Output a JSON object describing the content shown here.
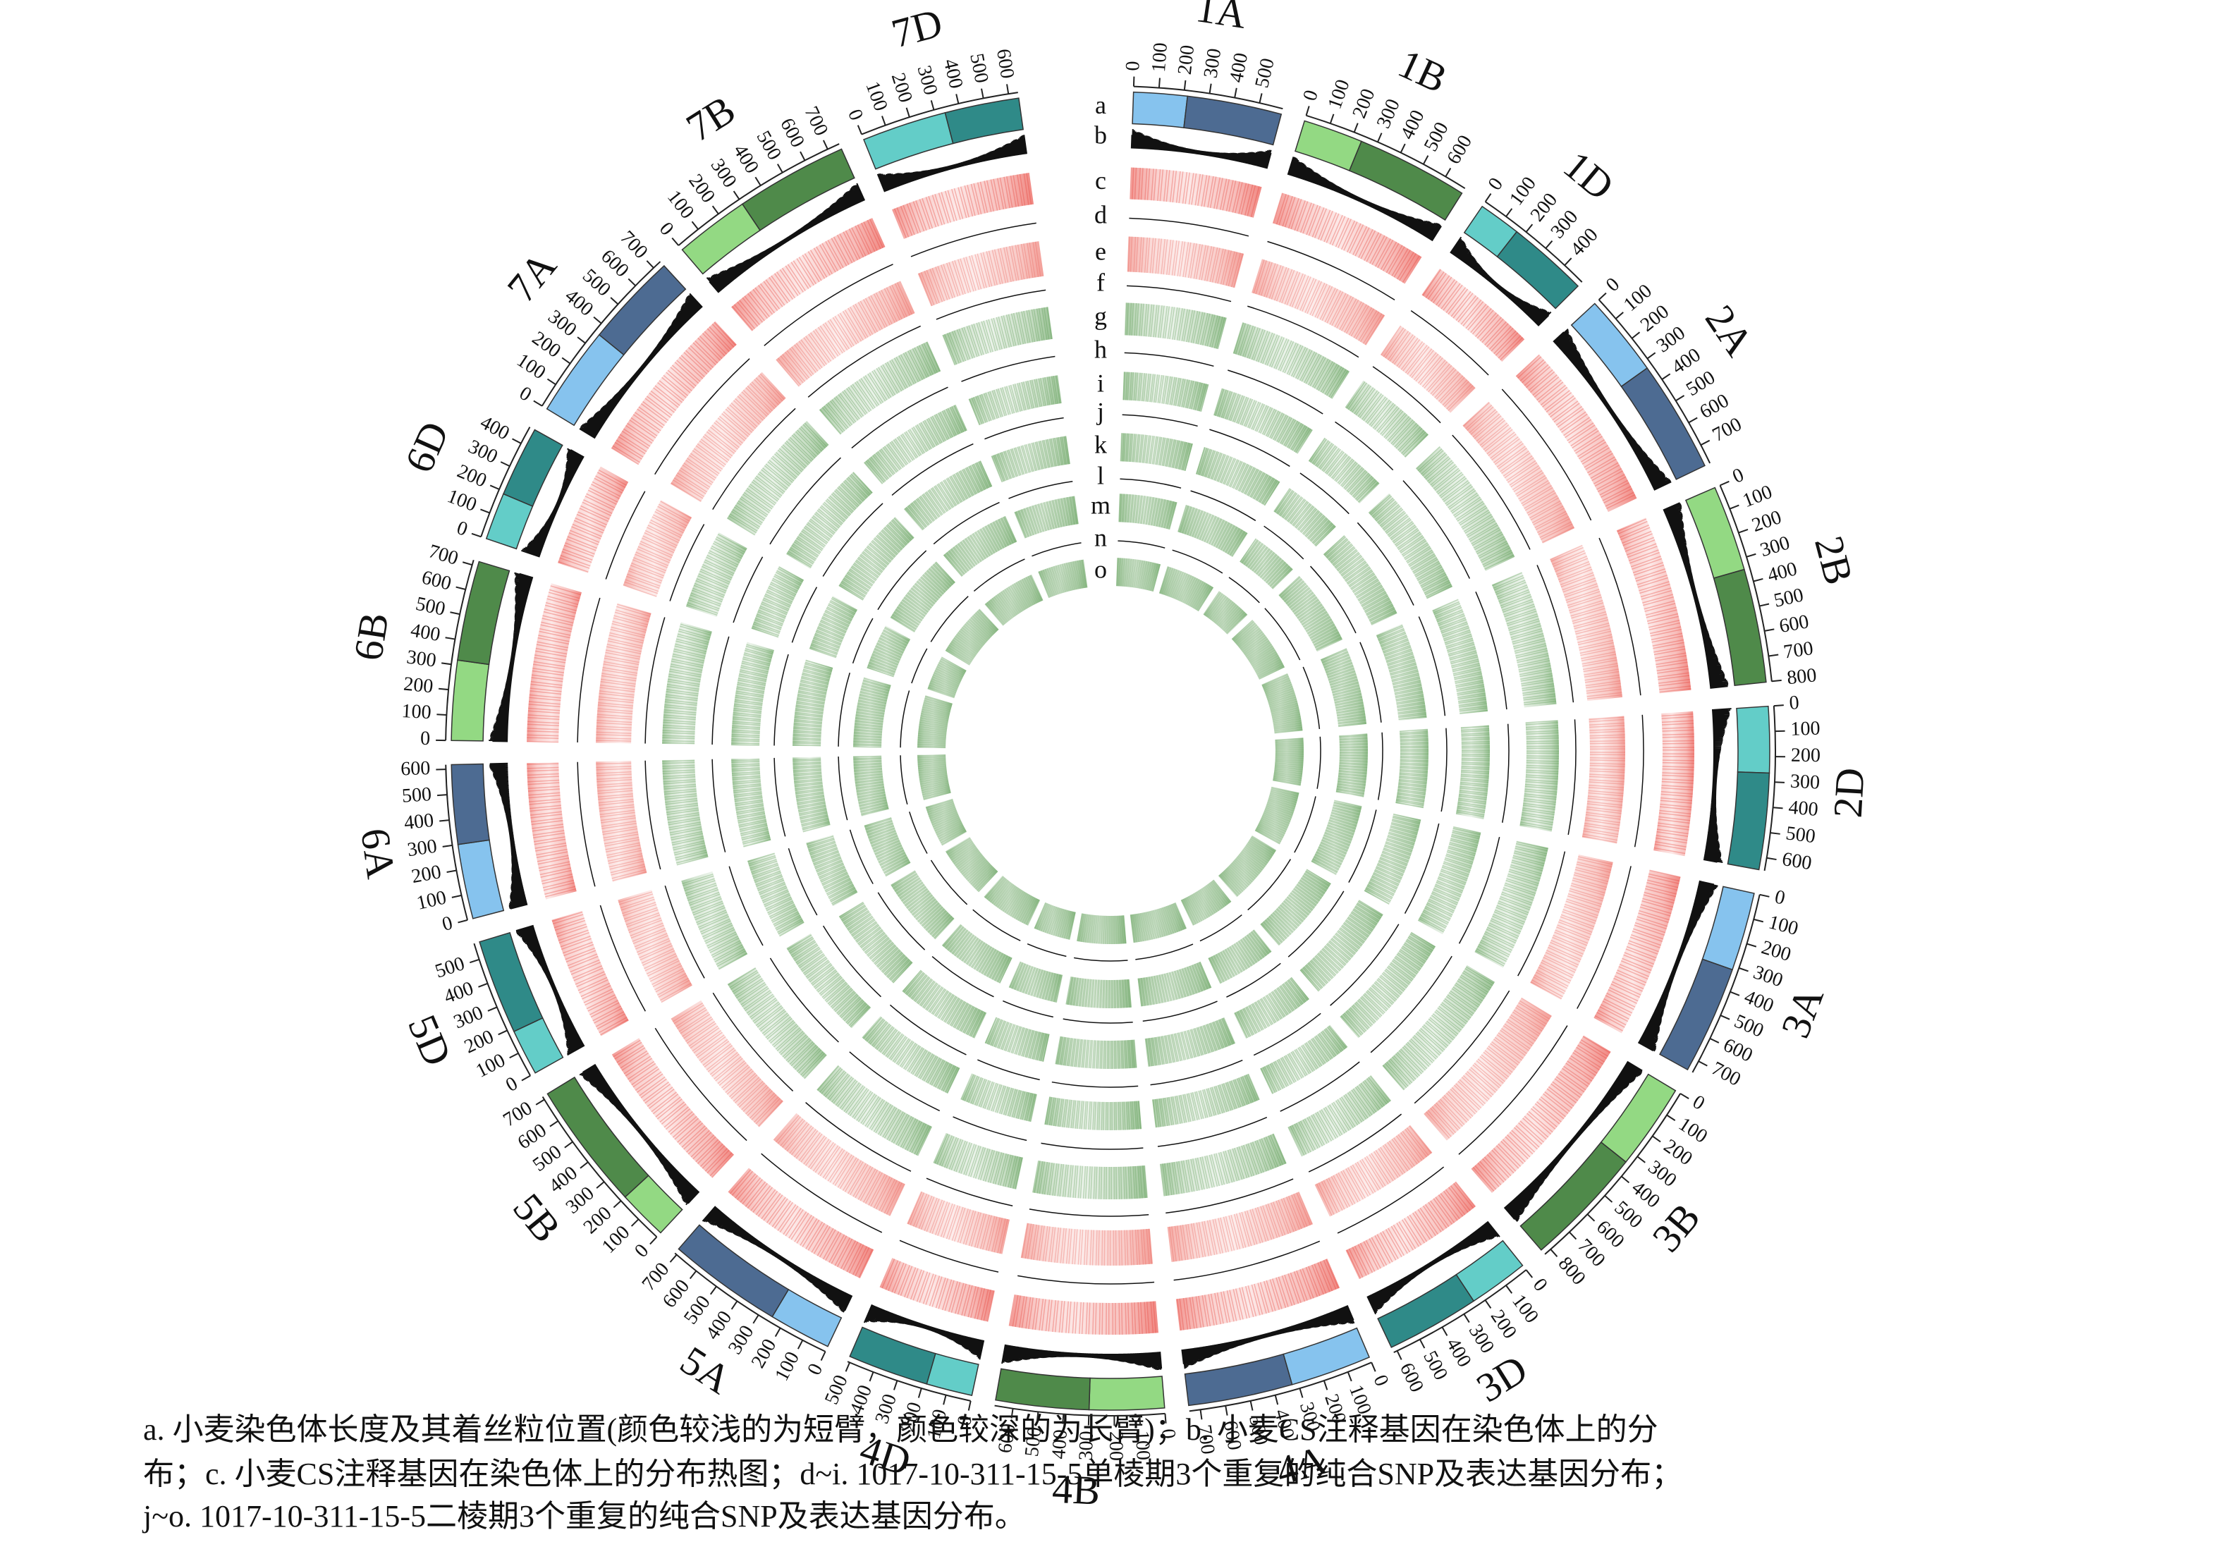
{
  "chart_data": {
    "type": "circos",
    "chromosomes": [
      {
        "name": "1A",
        "length": 594,
        "centromere": 215,
        "colors": [
          "#86c3ee",
          "#4d6b92"
        ],
        "ticks": [
          0,
          100,
          200,
          300,
          400,
          500
        ]
      },
      {
        "name": "1B",
        "length": 689,
        "centromere": 240,
        "colors": [
          "#93d983",
          "#4f8a4a"
        ],
        "ticks": [
          0,
          100,
          200,
          300,
          400,
          500,
          600
        ]
      },
      {
        "name": "1D",
        "length": 495,
        "centromere": 170,
        "colors": [
          "#63cdc8",
          "#2f8a88"
        ],
        "ticks": [
          0,
          100,
          200,
          300,
          400
        ]
      },
      {
        "name": "2A",
        "length": 780,
        "centromere": 330,
        "colors": [
          "#86c3ee",
          "#4d6b92"
        ],
        "ticks": [
          0,
          100,
          200,
          300,
          400,
          500,
          600,
          700
        ]
      },
      {
        "name": "2B",
        "length": 801,
        "centromere": 345,
        "colors": [
          "#93d983",
          "#4f8a4a"
        ],
        "ticks": [
          0,
          100,
          200,
          300,
          400,
          500,
          600,
          700,
          800
        ]
      },
      {
        "name": "2D",
        "length": 651,
        "centromere": 265,
        "colors": [
          "#63cdc8",
          "#2f8a88"
        ],
        "ticks": [
          0,
          100,
          200,
          300,
          400,
          500,
          600
        ]
      },
      {
        "name": "3A",
        "length": 750,
        "centromere": 315,
        "colors": [
          "#86c3ee",
          "#4d6b92"
        ],
        "ticks": [
          0,
          100,
          200,
          300,
          400,
          500,
          600,
          700
        ]
      },
      {
        "name": "3B",
        "length": 830,
        "centromere": 345,
        "colors": [
          "#93d983",
          "#4f8a4a"
        ],
        "ticks": [
          0,
          100,
          200,
          300,
          400,
          500,
          600,
          700,
          800
        ]
      },
      {
        "name": "3D",
        "length": 615,
        "centromere": 240,
        "colors": [
          "#63cdc8",
          "#2f8a88"
        ],
        "ticks": [
          0,
          100,
          200,
          300,
          400,
          500,
          600
        ]
      },
      {
        "name": "4A",
        "length": 744,
        "centromere": 325,
        "colors": [
          "#86c3ee",
          "#4d6b92"
        ],
        "ticks": [
          0,
          100,
          200,
          300,
          400,
          500,
          600,
          700
        ]
      },
      {
        "name": "4B",
        "length": 673,
        "centromere": 300,
        "colors": [
          "#93d983",
          "#4f8a4a"
        ],
        "ticks": [
          0,
          100,
          200,
          300,
          400,
          500,
          600
        ]
      },
      {
        "name": "4D",
        "length": 509,
        "centromere": 185,
        "colors": [
          "#63cdc8",
          "#2f8a88"
        ],
        "ticks": [
          0,
          100,
          200,
          300,
          400,
          500
        ]
      },
      {
        "name": "5A",
        "length": 709,
        "centromere": 250,
        "colors": [
          "#86c3ee",
          "#4d6b92"
        ],
        "ticks": [
          0,
          100,
          200,
          300,
          400,
          500,
          600,
          700
        ]
      },
      {
        "name": "5B",
        "length": 713,
        "centromere": 200,
        "colors": [
          "#93d983",
          "#4f8a4a"
        ],
        "ticks": [
          0,
          100,
          200,
          300,
          400,
          500,
          600,
          700
        ]
      },
      {
        "name": "5D",
        "length": 566,
        "centromere": 185,
        "colors": [
          "#63cdc8",
          "#2f8a88"
        ],
        "ticks": [
          0,
          100,
          200,
          300,
          400,
          500
        ]
      },
      {
        "name": "6A",
        "length": 618,
        "centromere": 300,
        "colors": [
          "#86c3ee",
          "#4d6b92"
        ],
        "ticks": [
          0,
          100,
          200,
          300,
          400,
          500,
          600
        ]
      },
      {
        "name": "6B",
        "length": 720,
        "centromere": 320,
        "colors": [
          "#93d983",
          "#4f8a4a"
        ],
        "ticks": [
          0,
          100,
          200,
          300,
          400,
          500,
          600,
          700
        ]
      },
      {
        "name": "6D",
        "length": 473,
        "centromere": 190,
        "colors": [
          "#63cdc8",
          "#2f8a88"
        ],
        "ticks": [
          0,
          100,
          200,
          300,
          400
        ]
      },
      {
        "name": "7A",
        "length": 736,
        "centromere": 360,
        "colors": [
          "#86c3ee",
          "#4d6b92"
        ],
        "ticks": [
          0,
          100,
          200,
          300,
          400,
          500,
          600,
          700
        ]
      },
      {
        "name": "7B",
        "length": 750,
        "centromere": 300,
        "colors": [
          "#93d983",
          "#4f8a4a"
        ],
        "ticks": [
          0,
          100,
          200,
          300,
          400,
          500,
          600,
          700
        ]
      },
      {
        "name": "7D",
        "length": 638,
        "centromere": 340,
        "colors": [
          "#63cdc8",
          "#2f8a88"
        ],
        "ticks": [
          0,
          100,
          200,
          300,
          400,
          500,
          600
        ]
      }
    ],
    "tracks": [
      {
        "label": "a",
        "style": "ideogram"
      },
      {
        "label": "b",
        "style": "histogram",
        "color": "#111111"
      },
      {
        "label": "c",
        "style": "heatmap",
        "color": "#e8453c"
      },
      {
        "label": "d",
        "style": "line",
        "color": "#111111"
      },
      {
        "label": "e",
        "style": "heatmap",
        "color": "#ec6a60"
      },
      {
        "label": "f",
        "style": "line",
        "color": "#111111"
      },
      {
        "label": "g",
        "style": "heatmap",
        "color": "#5f9e57"
      },
      {
        "label": "h",
        "style": "line",
        "color": "#111111"
      },
      {
        "label": "i",
        "style": "heatmap",
        "color": "#5f9e57"
      },
      {
        "label": "j",
        "style": "line",
        "color": "#111111"
      },
      {
        "label": "k",
        "style": "heatmap",
        "color": "#5f9e57"
      },
      {
        "label": "l",
        "style": "line",
        "color": "#111111"
      },
      {
        "label": "m",
        "style": "heatmap",
        "color": "#5f9e57"
      },
      {
        "label": "n",
        "style": "line",
        "color": "#111111"
      },
      {
        "label": "o",
        "style": "heatmap",
        "color": "#5f9e57"
      }
    ],
    "caption": [
      "a. 小麦染色体长度及其着丝粒位置(颜色较浅的为短臂，颜色较深的为长臂)；b. 小麦CS注释基因在染色体上的分",
      "布；c. 小麦CS注释基因在染色体上的分布热图；d~i. 1017-10-311-15-5单棱期3个重复的纯合SNP及表达基因分布；",
      "j~o. 1017-10-311-15-5二棱期3个重复的纯合SNP及表达基因分布。"
    ]
  }
}
